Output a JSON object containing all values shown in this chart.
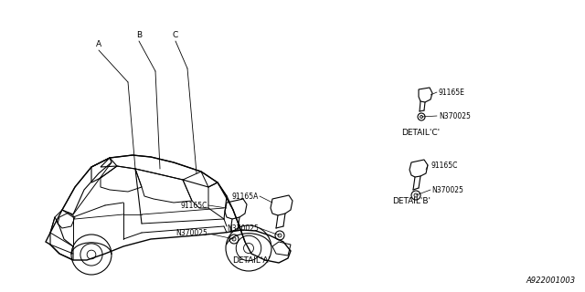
{
  "background_color": "#ffffff",
  "part_number_bottom": "A922001003",
  "line_color": "#000000",
  "text_color": "#000000",
  "font_size": 6.5,
  "label_A": "A",
  "label_B": "B",
  "label_C": "C",
  "detail_a_label": "DETAIL'A'",
  "detail_b_label": "DETAIL'B'",
  "detail_c_label": "DETAIL'C'",
  "part_91165C": "91165C",
  "part_91165A": "91165A",
  "part_91165E": "91165E",
  "part_N370025": "N370025"
}
